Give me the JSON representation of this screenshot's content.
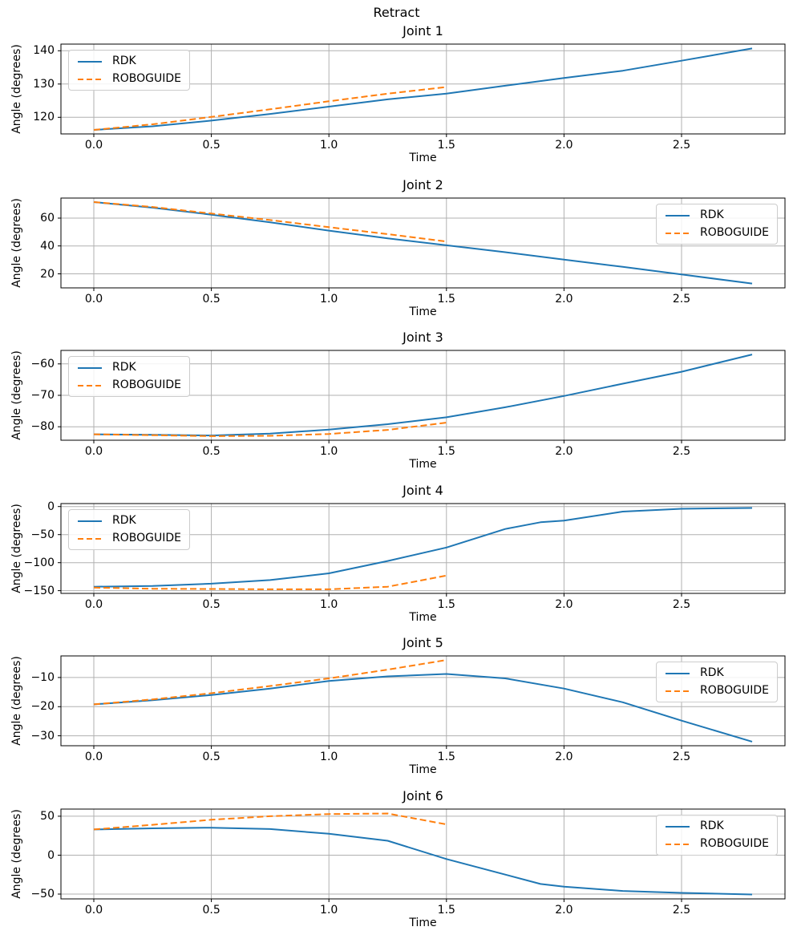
{
  "figure": {
    "suptitle": "Retract",
    "background": "#ffffff",
    "grid": true,
    "grid_color": "#b0b0b0",
    "series_colors": {
      "RDK": "#1f77b4",
      "ROBOGUIDE": "#ff7f0e"
    }
  },
  "chart_data": [
    {
      "type": "line",
      "title": "Joint 1",
      "xlabel": "Time",
      "ylabel": "Angle (degrees)",
      "xlim": [
        -0.14,
        2.94
      ],
      "ylim": [
        115.0,
        142.0
      ],
      "xticks": [
        0.0,
        0.5,
        1.0,
        1.5,
        2.0,
        2.5
      ],
      "yticks": [
        120,
        130,
        140
      ],
      "grid": true,
      "legend_position": "upper-left",
      "series": [
        {
          "name": "RDK",
          "color": "#1f77b4",
          "style": "solid",
          "x": [
            0,
            0.25,
            0.5,
            0.75,
            1.0,
            1.25,
            1.5,
            1.75,
            2.0,
            2.25,
            2.5,
            2.8
          ],
          "y": [
            116.2,
            117.3,
            119.0,
            121.0,
            123.2,
            125.4,
            127.1,
            129.5,
            131.8,
            134.0,
            137.0,
            140.7
          ]
        },
        {
          "name": "ROBOGUIDE",
          "color": "#ff7f0e",
          "style": "dashed",
          "x": [
            0,
            0.25,
            0.5,
            0.75,
            1.0,
            1.25,
            1.5
          ],
          "y": [
            116.2,
            117.9,
            120.1,
            122.4,
            124.8,
            127.1,
            129.1
          ]
        }
      ]
    },
    {
      "type": "line",
      "title": "Joint 2",
      "xlabel": "Time",
      "ylabel": "Angle (degrees)",
      "xlim": [
        -0.14,
        2.94
      ],
      "ylim": [
        9.9,
        74.4
      ],
      "xticks": [
        0.0,
        0.5,
        1.0,
        1.5,
        2.0,
        2.5
      ],
      "yticks": [
        20,
        40,
        60
      ],
      "grid": true,
      "legend_position": "upper-right",
      "series": [
        {
          "name": "RDK",
          "color": "#1f77b4",
          "style": "solid",
          "x": [
            0,
            0.25,
            0.5,
            0.75,
            1.0,
            1.25,
            1.5,
            1.75,
            2.0,
            2.25,
            2.5,
            2.8
          ],
          "y": [
            71.5,
            67.5,
            62.5,
            57.0,
            51.0,
            45.5,
            40.5,
            35.5,
            30.2,
            25.0,
            19.5,
            13.0
          ]
        },
        {
          "name": "ROBOGUIDE",
          "color": "#ff7f0e",
          "style": "dashed",
          "x": [
            0,
            0.25,
            0.5,
            0.75,
            1.0,
            1.25,
            1.5
          ],
          "y": [
            71.5,
            68.0,
            63.3,
            58.6,
            53.5,
            48.5,
            43.2
          ]
        }
      ]
    },
    {
      "type": "line",
      "title": "Joint 3",
      "xlabel": "Time",
      "ylabel": "Angle (degrees)",
      "xlim": [
        -0.14,
        2.94
      ],
      "ylim": [
        -84.3,
        -55.7
      ],
      "xticks": [
        0.0,
        0.5,
        1.0,
        1.5,
        2.0,
        2.5
      ],
      "yticks": [
        -80,
        -70,
        -60
      ],
      "grid": true,
      "legend_position": "upper-left",
      "series": [
        {
          "name": "RDK",
          "color": "#1f77b4",
          "style": "solid",
          "x": [
            0,
            0.25,
            0.5,
            0.75,
            1.0,
            1.25,
            1.5,
            1.75,
            2.0,
            2.25,
            2.5,
            2.8
          ],
          "y": [
            -82.4,
            -82.6,
            -82.8,
            -82.2,
            -80.9,
            -79.2,
            -77.0,
            -73.8,
            -70.2,
            -66.3,
            -62.5,
            -57.0
          ]
        },
        {
          "name": "ROBOGUIDE",
          "color": "#ff7f0e",
          "style": "dashed",
          "x": [
            0,
            0.25,
            0.5,
            0.75,
            1.0,
            1.25,
            1.5
          ],
          "y": [
            -82.4,
            -82.7,
            -83.0,
            -82.9,
            -82.3,
            -81.0,
            -78.7
          ]
        }
      ]
    },
    {
      "type": "line",
      "title": "Joint 4",
      "xlabel": "Time",
      "ylabel": "Angle (degrees)",
      "xlim": [
        -0.14,
        2.94
      ],
      "ylim": [
        -154.8,
        5.3
      ],
      "xticks": [
        0.0,
        0.5,
        1.0,
        1.5,
        2.0,
        2.5
      ],
      "yticks": [
        -150,
        -100,
        -50,
        0
      ],
      "grid": true,
      "legend_position": "upper-left",
      "series": [
        {
          "name": "RDK",
          "color": "#1f77b4",
          "style": "solid",
          "x": [
            0,
            0.25,
            0.5,
            0.75,
            1.0,
            1.25,
            1.5,
            1.75,
            1.9,
            2.0,
            2.25,
            2.5,
            2.8
          ],
          "y": [
            -143.0,
            -141.5,
            -137.5,
            -131.0,
            -119.0,
            -97.0,
            -73.0,
            -40.0,
            -28.0,
            -25.0,
            -9.0,
            -4.0,
            -2.5
          ]
        },
        {
          "name": "ROBOGUIDE",
          "color": "#ff7f0e",
          "style": "dashed",
          "x": [
            0,
            0.25,
            0.5,
            0.75,
            1.0,
            1.25,
            1.5
          ],
          "y": [
            -144.5,
            -146.5,
            -147.0,
            -147.5,
            -147.5,
            -143.0,
            -123.0
          ]
        }
      ]
    },
    {
      "type": "line",
      "title": "Joint 5",
      "xlabel": "Time",
      "ylabel": "Angle (degrees)",
      "xlim": [
        -0.14,
        2.94
      ],
      "ylim": [
        -33.4,
        -2.6
      ],
      "xticks": [
        0.0,
        0.5,
        1.0,
        1.5,
        2.0,
        2.5
      ],
      "yticks": [
        -30,
        -20,
        -10
      ],
      "grid": true,
      "legend_position": "upper-right",
      "series": [
        {
          "name": "RDK",
          "color": "#1f77b4",
          "style": "solid",
          "x": [
            0,
            0.25,
            0.5,
            0.75,
            1.0,
            1.25,
            1.5,
            1.75,
            2.0,
            2.25,
            2.5,
            2.8
          ],
          "y": [
            -19.2,
            -17.8,
            -16.0,
            -13.8,
            -11.2,
            -9.6,
            -8.8,
            -10.3,
            -13.8,
            -18.5,
            -24.8,
            -32.0
          ]
        },
        {
          "name": "ROBOGUIDE",
          "color": "#ff7f0e",
          "style": "dashed",
          "x": [
            0,
            0.25,
            0.5,
            0.75,
            1.0,
            1.25,
            1.5
          ],
          "y": [
            -19.2,
            -17.5,
            -15.4,
            -12.9,
            -10.3,
            -7.3,
            -4.0
          ]
        }
      ]
    },
    {
      "type": "line",
      "title": "Joint 6",
      "xlabel": "Time",
      "ylabel": "Angle (degrees)",
      "xlim": [
        -0.14,
        2.94
      ],
      "ylim": [
        -56.2,
        59.2
      ],
      "xticks": [
        0.0,
        0.5,
        1.0,
        1.5,
        2.0,
        2.5
      ],
      "yticks": [
        -50,
        0,
        50
      ],
      "grid": true,
      "legend_position": "upper-right",
      "series": [
        {
          "name": "RDK",
          "color": "#1f77b4",
          "style": "solid",
          "x": [
            0,
            0.25,
            0.5,
            0.75,
            1.0,
            1.25,
            1.5,
            1.75,
            1.9,
            2.0,
            2.25,
            2.5,
            2.8
          ],
          "y": [
            33.0,
            34.5,
            35.3,
            33.5,
            27.5,
            18.5,
            -5.0,
            -25.0,
            -37.0,
            -40.5,
            -46.0,
            -48.5,
            -50.5
          ]
        },
        {
          "name": "ROBOGUIDE",
          "color": "#ff7f0e",
          "style": "dashed",
          "x": [
            0,
            0.25,
            0.5,
            0.75,
            1.0,
            1.25,
            1.5
          ],
          "y": [
            33.0,
            39.0,
            45.5,
            50.0,
            52.8,
            53.5,
            39.5
          ]
        }
      ]
    }
  ]
}
